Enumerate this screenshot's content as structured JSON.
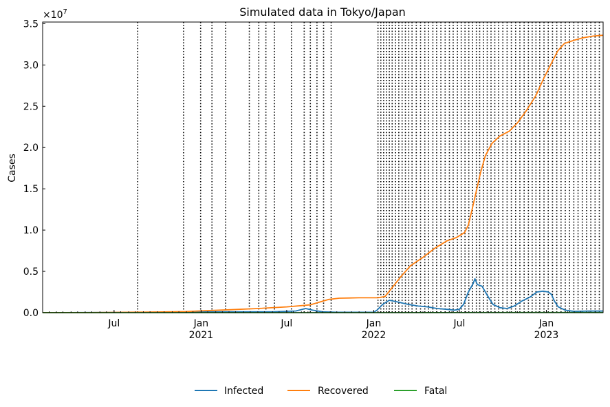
{
  "chart_data": {
    "type": "line",
    "title": "Simulated data in Tokyo/Japan",
    "ylabel": "Cases",
    "xlabel": "",
    "y_offset_text": "×10^7",
    "y_offset_base": "×10",
    "y_offset_exp": "7",
    "xlim": [
      "2020-02-01",
      "2023-05-01"
    ],
    "ylim": [
      0,
      3.52
    ],
    "y_ticks": [
      0.0,
      0.5,
      1.0,
      1.5,
      2.0,
      2.5,
      3.0,
      3.5
    ],
    "y_tick_labels": [
      "0.0",
      "0.5",
      "1.0",
      "1.5",
      "2.0",
      "2.5",
      "3.0",
      "3.5"
    ],
    "x_major_ticks": [
      {
        "date": "2020-07-01",
        "label": "Jul",
        "year": ""
      },
      {
        "date": "2021-01-01",
        "label": "Jan",
        "year": "2021"
      },
      {
        "date": "2021-07-01",
        "label": "Jul",
        "year": ""
      },
      {
        "date": "2022-01-01",
        "label": "Jan",
        "year": "2022"
      },
      {
        "date": "2022-07-01",
        "label": "Jul",
        "year": ""
      },
      {
        "date": "2023-01-01",
        "label": "Jan",
        "year": "2023"
      }
    ],
    "change_dates": [
      "2020-08-20",
      "2020-11-25",
      "2020-12-31",
      "2021-01-24",
      "2021-02-22",
      "2021-04-13",
      "2021-05-03",
      "2021-05-18",
      "2021-06-05",
      "2021-07-11",
      "2021-08-07",
      "2021-08-20",
      "2021-09-03",
      "2021-09-17",
      "2021-10-03",
      "2022-01-10",
      "2022-01-16",
      "2022-01-22",
      "2022-01-28",
      "2022-02-03",
      "2022-02-09",
      "2022-02-16",
      "2022-02-23",
      "2022-03-02",
      "2022-03-09",
      "2022-03-16",
      "2022-03-23",
      "2022-04-01",
      "2022-04-10",
      "2022-04-19",
      "2022-04-27",
      "2022-05-06",
      "2022-05-14",
      "2022-05-23",
      "2022-06-01",
      "2022-06-10",
      "2022-06-18",
      "2022-06-27",
      "2022-07-05",
      "2022-07-13",
      "2022-07-21",
      "2022-07-29",
      "2022-08-06",
      "2022-08-13",
      "2022-08-21",
      "2022-08-29",
      "2022-09-06",
      "2022-09-14",
      "2022-09-22",
      "2022-10-01",
      "2022-10-10",
      "2022-10-19",
      "2022-10-28",
      "2022-11-06",
      "2022-11-15",
      "2022-11-24",
      "2022-12-02",
      "2022-12-10",
      "2022-12-18",
      "2022-12-27",
      "2023-01-05",
      "2023-01-14",
      "2023-01-23",
      "2023-02-01",
      "2023-02-10",
      "2023-02-19",
      "2023-02-28",
      "2023-03-09",
      "2023-03-18",
      "2023-03-27",
      "2023-04-05",
      "2023-04-14",
      "2023-04-23"
    ],
    "series": [
      {
        "name": "Infected",
        "color": "#1f77b4",
        "points": [
          [
            "2020-02-01",
            0.0
          ],
          [
            "2020-08-01",
            0.003
          ],
          [
            "2021-01-01",
            0.01
          ],
          [
            "2021-06-01",
            0.01
          ],
          [
            "2021-07-20",
            0.02
          ],
          [
            "2021-08-10",
            0.05
          ],
          [
            "2021-08-25",
            0.03
          ],
          [
            "2021-09-15",
            0.01
          ],
          [
            "2021-10-15",
            0.005
          ],
          [
            "2022-01-01",
            0.005
          ],
          [
            "2022-01-08",
            0.03
          ],
          [
            "2022-01-20",
            0.1
          ],
          [
            "2022-02-03",
            0.15
          ],
          [
            "2022-02-20",
            0.13
          ],
          [
            "2022-03-15",
            0.1
          ],
          [
            "2022-04-05",
            0.08
          ],
          [
            "2022-04-25",
            0.07
          ],
          [
            "2022-05-15",
            0.05
          ],
          [
            "2022-06-05",
            0.04
          ],
          [
            "2022-06-20",
            0.03
          ],
          [
            "2022-07-01",
            0.04
          ],
          [
            "2022-07-10",
            0.1
          ],
          [
            "2022-07-20",
            0.25
          ],
          [
            "2022-07-30",
            0.35
          ],
          [
            "2022-08-03",
            0.41
          ],
          [
            "2022-08-08",
            0.34
          ],
          [
            "2022-08-18",
            0.32
          ],
          [
            "2022-08-28",
            0.22
          ],
          [
            "2022-09-10",
            0.1
          ],
          [
            "2022-09-25",
            0.06
          ],
          [
            "2022-10-10",
            0.05
          ],
          [
            "2022-10-25",
            0.08
          ],
          [
            "2022-11-10",
            0.14
          ],
          [
            "2022-11-28",
            0.19
          ],
          [
            "2022-12-12",
            0.25
          ],
          [
            "2022-12-25",
            0.26
          ],
          [
            "2023-01-05",
            0.25
          ],
          [
            "2023-01-12",
            0.22
          ],
          [
            "2023-01-18",
            0.14
          ],
          [
            "2023-01-26",
            0.07
          ],
          [
            "2023-02-10",
            0.03
          ],
          [
            "2023-03-01",
            0.015
          ],
          [
            "2023-04-01",
            0.02
          ],
          [
            "2023-05-01",
            0.02
          ]
        ]
      },
      {
        "name": "Recovered",
        "color": "#ff7f0e",
        "points": [
          [
            "2020-02-01",
            0.0
          ],
          [
            "2020-06-01",
            0.002
          ],
          [
            "2020-10-01",
            0.008
          ],
          [
            "2020-12-01",
            0.013
          ],
          [
            "2021-01-15",
            0.025
          ],
          [
            "2021-03-01",
            0.035
          ],
          [
            "2021-05-01",
            0.05
          ],
          [
            "2021-07-01",
            0.07
          ],
          [
            "2021-08-01",
            0.085
          ],
          [
            "2021-08-20",
            0.095
          ],
          [
            "2021-09-10",
            0.13
          ],
          [
            "2021-09-28",
            0.16
          ],
          [
            "2021-10-20",
            0.175
          ],
          [
            "2021-12-01",
            0.18
          ],
          [
            "2022-01-10",
            0.18
          ],
          [
            "2022-01-25",
            0.195
          ],
          [
            "2022-02-10",
            0.31
          ],
          [
            "2022-02-28",
            0.44
          ],
          [
            "2022-03-20",
            0.57
          ],
          [
            "2022-04-15",
            0.67
          ],
          [
            "2022-05-10",
            0.78
          ],
          [
            "2022-06-05",
            0.87
          ],
          [
            "2022-06-25",
            0.91
          ],
          [
            "2022-07-12",
            0.97
          ],
          [
            "2022-07-20",
            1.06
          ],
          [
            "2022-07-28",
            1.25
          ],
          [
            "2022-08-05",
            1.45
          ],
          [
            "2022-08-15",
            1.7
          ],
          [
            "2022-08-25",
            1.9
          ],
          [
            "2022-09-08",
            2.05
          ],
          [
            "2022-09-25",
            2.14
          ],
          [
            "2022-10-15",
            2.2
          ],
          [
            "2022-11-01",
            2.3
          ],
          [
            "2022-11-20",
            2.45
          ],
          [
            "2022-12-10",
            2.63
          ],
          [
            "2022-12-25",
            2.82
          ],
          [
            "2023-01-08",
            2.98
          ],
          [
            "2023-01-25",
            3.17
          ],
          [
            "2023-02-08",
            3.26
          ],
          [
            "2023-03-01",
            3.3
          ],
          [
            "2023-03-20",
            3.33
          ],
          [
            "2023-04-10",
            3.35
          ],
          [
            "2023-05-01",
            3.36
          ]
        ]
      },
      {
        "name": "Fatal",
        "color": "#2ca02c",
        "points": [
          [
            "2020-02-01",
            0.0
          ],
          [
            "2021-01-01",
            0.0002
          ],
          [
            "2022-01-01",
            0.0004
          ],
          [
            "2022-07-01",
            0.0008
          ],
          [
            "2023-01-01",
            0.0015
          ],
          [
            "2023-05-01",
            0.002
          ]
        ]
      }
    ],
    "legend_position": "bottom-center",
    "grid": false
  }
}
